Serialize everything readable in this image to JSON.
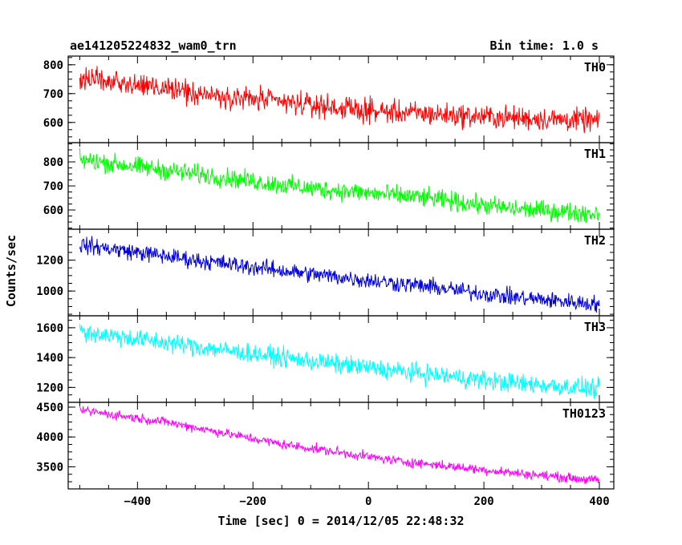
{
  "header": {
    "title": "ae141205224832_wam0_trn",
    "bin_time": "Bin time: 1.0 s"
  },
  "chart_data": {
    "type": "line",
    "xlabel": "Time [sec] 0 = 2014/12/05 22:48:32",
    "ylabel": "Counts/sec",
    "xlim": [
      -520,
      425
    ],
    "x_ticks": [
      -400,
      -200,
      0,
      200,
      400
    ],
    "x_tick_labels": [
      "−400",
      "−200",
      "0",
      "200",
      "400"
    ],
    "x_range": [
      -500,
      400
    ],
    "panels": [
      {
        "name": "TH0",
        "color": "#ff0000",
        "ylim": [
          530,
          830
        ],
        "y_ticks": [
          600,
          700,
          800
        ],
        "y_tick_labels": [
          "600",
          "700",
          "800"
        ],
        "trend": [
          [
            -500,
            760
          ],
          [
            -350,
            715
          ],
          [
            -150,
            670
          ],
          [
            0,
            640
          ],
          [
            200,
            620
          ],
          [
            400,
            605
          ]
        ],
        "noise": 28
      },
      {
        "name": "TH1",
        "color": "#00ff00",
        "ylim": [
          520,
          880
        ],
        "y_ticks": [
          600,
          700,
          800
        ],
        "y_tick_labels": [
          "600",
          "700",
          "800"
        ],
        "trend": [
          [
            -500,
            810
          ],
          [
            -300,
            750
          ],
          [
            -100,
            690
          ],
          [
            100,
            650
          ],
          [
            250,
            605
          ],
          [
            400,
            585
          ]
        ],
        "noise": 28
      },
      {
        "name": "TH2",
        "color": "#0000dd",
        "ylim": [
          840,
          1400
        ],
        "y_ticks": [
          1000,
          1200
        ],
        "y_tick_labels": [
          "1000",
          "1200"
        ],
        "trend": [
          [
            -500,
            1300
          ],
          [
            -300,
            1200
          ],
          [
            -100,
            1110
          ],
          [
            100,
            1030
          ],
          [
            250,
            960
          ],
          [
            400,
            915
          ]
        ],
        "noise": 38
      },
      {
        "name": "TH3",
        "color": "#00ffff",
        "ylim": [
          1100,
          1680
        ],
        "y_ticks": [
          1200,
          1400,
          1600
        ],
        "y_tick_labels": [
          "1200",
          "1400",
          "1600"
        ],
        "trend": [
          [
            -500,
            1575
          ],
          [
            -350,
            1500
          ],
          [
            -150,
            1400
          ],
          [
            50,
            1310
          ],
          [
            250,
            1230
          ],
          [
            400,
            1190
          ]
        ],
        "noise": 45
      },
      {
        "name": "TH0123",
        "color": "#ff00ff",
        "ylim": [
          3130,
          4580
        ],
        "y_ticks": [
          3500,
          4000,
          4500
        ],
        "y_tick_labels": [
          "3500",
          "4000",
          "4500"
        ],
        "trend": [
          [
            -500,
            4450
          ],
          [
            -350,
            4250
          ],
          [
            -150,
            3880
          ],
          [
            50,
            3600
          ],
          [
            250,
            3400
          ],
          [
            400,
            3270
          ]
        ],
        "noise": 55
      }
    ]
  }
}
